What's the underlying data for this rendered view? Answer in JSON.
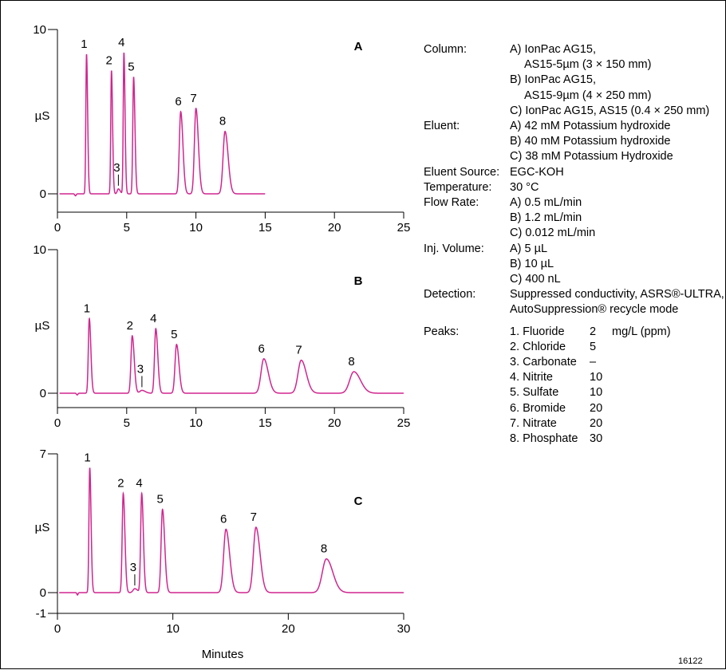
{
  "chart_data": [
    {
      "type": "line",
      "panel": "A",
      "ylabel": "µS",
      "xlim": [
        0,
        25
      ],
      "ylim": [
        0,
        10
      ],
      "yticks": [
        0,
        10
      ],
      "xticks": [
        0,
        5,
        10,
        15,
        20,
        25
      ],
      "x_end": 15,
      "peaks": [
        {
          "label": "1",
          "rt": 2.1,
          "height": 8.5,
          "width": 0.05
        },
        {
          "label": "2",
          "rt": 3.9,
          "height": 7.5,
          "width": 0.05
        },
        {
          "label": "3",
          "rt": 4.4,
          "height": 0.3,
          "width": 0.08
        },
        {
          "label": "4",
          "rt": 4.8,
          "height": 8.6,
          "width": 0.05
        },
        {
          "label": "5",
          "rt": 5.5,
          "height": 7.1,
          "width": 0.06
        },
        {
          "label": "6",
          "rt": 8.9,
          "height": 5.0,
          "width": 0.1
        },
        {
          "label": "7",
          "rt": 10.0,
          "height": 5.2,
          "width": 0.11
        },
        {
          "label": "8",
          "rt": 12.1,
          "height": 3.8,
          "width": 0.14
        }
      ]
    },
    {
      "type": "line",
      "panel": "B",
      "ylabel": "µS",
      "xlim": [
        0,
        25
      ],
      "ylim": [
        0,
        10
      ],
      "yticks": [
        0,
        10
      ],
      "xticks": [
        0,
        5,
        10,
        15,
        20,
        25
      ],
      "x_end": 25,
      "peaks": [
        {
          "label": "1",
          "rt": 2.3,
          "height": 5.2,
          "width": 0.07
        },
        {
          "label": "2",
          "rt": 5.4,
          "height": 4.0,
          "width": 0.09
        },
        {
          "label": "3",
          "rt": 6.1,
          "height": 0.2,
          "width": 0.15
        },
        {
          "label": "4",
          "rt": 7.1,
          "height": 4.5,
          "width": 0.09
        },
        {
          "label": "5",
          "rt": 8.6,
          "height": 3.4,
          "width": 0.11
        },
        {
          "label": "6",
          "rt": 14.9,
          "height": 2.4,
          "width": 0.2
        },
        {
          "label": "7",
          "rt": 17.6,
          "height": 2.3,
          "width": 0.23
        },
        {
          "label": "8",
          "rt": 21.4,
          "height": 1.5,
          "width": 0.3
        }
      ]
    },
    {
      "type": "line",
      "panel": "C",
      "ylabel": "µS",
      "xlabel": "Minutes",
      "xlim": [
        0,
        30
      ],
      "ylim": [
        -1,
        7
      ],
      "yticks": [
        -1,
        0,
        7
      ],
      "xticks": [
        0,
        10,
        20,
        30
      ],
      "x_end": 30,
      "peaks": [
        {
          "label": "1",
          "rt": 2.8,
          "height": 6.3,
          "width": 0.07
        },
        {
          "label": "2",
          "rt": 5.7,
          "height": 5.0,
          "width": 0.09
        },
        {
          "label": "3",
          "rt": 6.7,
          "height": 0.2,
          "width": 0.15
        },
        {
          "label": "4",
          "rt": 7.3,
          "height": 5.0,
          "width": 0.09
        },
        {
          "label": "5",
          "rt": 9.1,
          "height": 4.2,
          "width": 0.12
        },
        {
          "label": "6",
          "rt": 14.6,
          "height": 3.2,
          "width": 0.2
        },
        {
          "label": "7",
          "rt": 17.2,
          "height": 3.3,
          "width": 0.22
        },
        {
          "label": "8",
          "rt": 23.3,
          "height": 1.7,
          "width": 0.35
        }
      ]
    }
  ],
  "conditions": [
    {
      "label": "Column:",
      "lines": [
        "A) IonPac AG15,",
        "AS15-5µm (3 × 150 mm)",
        "B) IonPac AG15,",
        "AS15-9µm (4 × 250 mm)",
        "C) IonPac AG15, AS15 (0.4 × 250 mm)"
      ]
    },
    {
      "label": "Eluent:",
      "lines": [
        "A) 42 mM Potassium hydroxide",
        "B) 40 mM Potassium hydroxide",
        "C) 38 mM Potassium Hydroxide"
      ]
    },
    {
      "label": "Eluent Source:",
      "lines": [
        "EGC-KOH"
      ]
    },
    {
      "label": "Temperature:",
      "lines": [
        "30 °C"
      ]
    },
    {
      "label": "Flow Rate:",
      "lines": [
        "A) 0.5 mL/min",
        "B) 1.2 mL/min",
        "C) 0.012 mL/min"
      ]
    },
    {
      "label": "Inj. Volume:",
      "lines": [
        "A) 5 µL",
        "B) 10 µL",
        "C) 400 nL"
      ]
    },
    {
      "label": "Detection:",
      "lines": [
        "Suppressed conductivity, ASRS®-ULTRA,",
        "AutoSuppression® recycle mode"
      ]
    }
  ],
  "peaks_table": {
    "label": "Peaks:",
    "unit": "mg/L (ppm)",
    "rows": [
      {
        "name": "1. Fluoride",
        "conc": "2"
      },
      {
        "name": "2. Chloride",
        "conc": "5"
      },
      {
        "name": "3. Carbonate",
        "conc": "–"
      },
      {
        "name": "4. Nitrite",
        "conc": "10"
      },
      {
        "name": "5. Sulfate",
        "conc": "10"
      },
      {
        "name": "6. Bromide",
        "conc": "20"
      },
      {
        "name": "7. Nitrate",
        "conc": "20"
      },
      {
        "name": "8. Phosphate",
        "conc": "30"
      }
    ]
  },
  "figure_id": "16122",
  "colors": {
    "trace": "#d0268f"
  }
}
